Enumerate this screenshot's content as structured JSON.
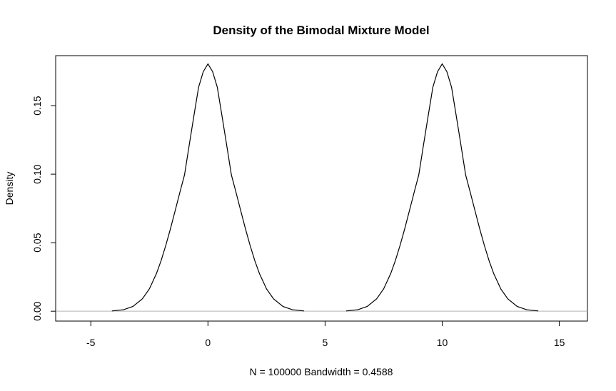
{
  "chart_data": {
    "type": "line",
    "title": "Density of the Bimodal Mixture Model",
    "xlabel": "N = 100000   Bandwidth = 0.4588",
    "ylabel": "Density",
    "xlim": [
      -6.5,
      16.2
    ],
    "ylim": [
      -0.0072,
      0.1865
    ],
    "x_ticks": [
      -5,
      0,
      5,
      10,
      15
    ],
    "y_ticks": [
      0.0,
      0.05,
      0.1,
      0.15
    ],
    "x_tick_labels": [
      "-5",
      "0",
      "5",
      "10",
      "15"
    ],
    "y_tick_labels": [
      "0.00",
      "0.05",
      "0.10",
      "0.15"
    ],
    "baseline": 0,
    "series": [
      {
        "color": "#000000",
        "x": [
          -4.1,
          -3.6,
          -3.2,
          -2.8,
          -2.5,
          -2.2,
          -2.0,
          -1.8,
          -1.6,
          -1.4,
          -1.2,
          -1.0,
          -0.8,
          -0.6,
          -0.4,
          -0.2,
          0.0,
          0.2,
          0.4,
          0.6,
          0.8,
          1.0,
          1.2,
          1.4,
          1.6,
          1.8,
          2.0,
          2.2,
          2.5,
          2.8,
          3.2,
          3.6,
          4.1,
          5.9,
          6.4,
          6.8,
          7.2,
          7.5,
          7.8,
          8.0,
          8.2,
          8.4,
          8.6,
          8.8,
          9.0,
          9.2,
          9.4,
          9.6,
          9.8,
          10.0,
          10.2,
          10.4,
          10.6,
          10.8,
          11.0,
          11.2,
          11.4,
          11.6,
          11.8,
          12.0,
          12.2,
          12.5,
          12.8,
          13.2,
          13.6,
          14.1
        ],
        "y": [
          0.0002,
          0.0011,
          0.0035,
          0.009,
          0.0163,
          0.0274,
          0.0369,
          0.048,
          0.0602,
          0.0733,
          0.0866,
          0.0995,
          0.1212,
          0.1425,
          0.1634,
          0.1748,
          0.1805,
          0.1748,
          0.1634,
          0.1425,
          0.1212,
          0.0995,
          0.0866,
          0.0733,
          0.0602,
          0.048,
          0.0369,
          0.0274,
          0.0163,
          0.009,
          0.0035,
          0.0011,
          0.0002,
          0.0002,
          0.0011,
          0.0035,
          0.009,
          0.0163,
          0.0274,
          0.0369,
          0.048,
          0.0602,
          0.0733,
          0.0866,
          0.0995,
          0.1212,
          0.1425,
          0.1634,
          0.1748,
          0.1805,
          0.1748,
          0.1634,
          0.1425,
          0.1212,
          0.0995,
          0.0866,
          0.0733,
          0.0602,
          0.048,
          0.0369,
          0.0274,
          0.0163,
          0.009,
          0.0035,
          0.0011,
          0.0002
        ]
      }
    ],
    "grid": false,
    "legend": "none"
  }
}
